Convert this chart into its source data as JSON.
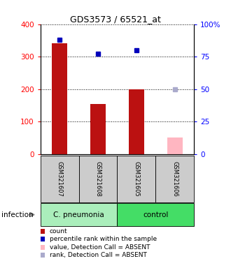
{
  "title": "GDS3573 / 65521_at",
  "samples": [
    "GSM321607",
    "GSM321608",
    "GSM321605",
    "GSM321606"
  ],
  "count_values": [
    340,
    155,
    200,
    null
  ],
  "count_absent_values": [
    null,
    null,
    null,
    52
  ],
  "percentile_values": [
    88,
    77,
    80,
    null
  ],
  "percentile_absent_values": [
    null,
    null,
    null,
    50
  ],
  "left_ylim": [
    0,
    400
  ],
  "right_ylim": [
    0,
    100
  ],
  "left_yticks": [
    0,
    100,
    200,
    300,
    400
  ],
  "right_yticks": [
    0,
    25,
    50,
    75,
    100
  ],
  "right_yticklabels": [
    "0",
    "25",
    "50",
    "75",
    "100%"
  ],
  "bar_color_present": "#BB1111",
  "bar_color_absent": "#FFB6C1",
  "dot_color_present": "#0000BB",
  "dot_color_absent": "#AAAACC",
  "group_spans": [
    {
      "label": "C. pneumonia",
      "start": 0,
      "end": 2,
      "color": "#AAEEBB"
    },
    {
      "label": "control",
      "start": 2,
      "end": 4,
      "color": "#44DD66"
    }
  ],
  "sample_cell_color": "#CCCCCC",
  "group_label": "infection",
  "legend_items": [
    {
      "color": "#BB1111",
      "label": "count"
    },
    {
      "color": "#0000BB",
      "label": "percentile rank within the sample"
    },
    {
      "color": "#FFB6C1",
      "label": "value, Detection Call = ABSENT"
    },
    {
      "color": "#AAAACC",
      "label": "rank, Detection Call = ABSENT"
    }
  ]
}
